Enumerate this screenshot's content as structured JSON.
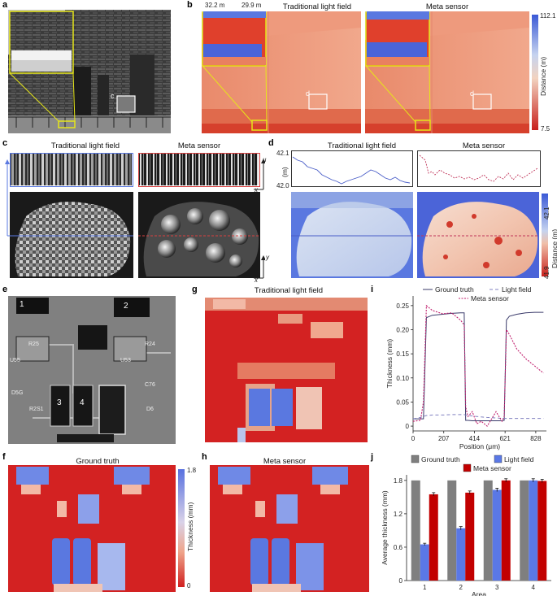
{
  "panels": {
    "a": "a",
    "b": "b",
    "c": "c",
    "d": "d",
    "e": "e",
    "f": "f",
    "g": "g",
    "h": "h",
    "i": "i",
    "j": "j"
  },
  "panel_a": {
    "roi_label": "c"
  },
  "panel_b": {
    "title_left": "Traditional light field",
    "title_right": "Meta sensor",
    "inset_max": "32.2 m",
    "inset_min": "29.9 m",
    "roi_label_left": "d",
    "roi_label_right": "d",
    "colorbar_max": "112.1",
    "colorbar_min": "7.5",
    "colorbar_label": "Distance (m)"
  },
  "panel_c": {
    "title_left": "Traditional light field",
    "title_right": "Meta sensor",
    "axis_u": "u",
    "axis_x_top": "x",
    "axis_y": "y",
    "axis_x_bottom": "x"
  },
  "panel_d": {
    "title_left": "Traditional light field",
    "title_right": "Meta sensor",
    "y_unit": "(m)",
    "y_max": "42.1",
    "y_min": "42.0",
    "colorbar_max": "42.1",
    "colorbar_min": "41.9",
    "colorbar_label": "Distance (m)"
  },
  "panel_e": {
    "chip_labels": [
      "1",
      "2",
      "3",
      "4"
    ],
    "board_texts": [
      "R25",
      "U55",
      "R24",
      "U53",
      "D5G",
      "C76",
      "R2S1",
      "D6"
    ]
  },
  "panel_g": {
    "title": "Traditional light field"
  },
  "panel_f": {
    "title": "Ground truth",
    "colorbar_max": "1.8",
    "colorbar_min": "0",
    "colorbar_label": "Thickness (mm)"
  },
  "panel_h": {
    "title": "Meta sensor"
  },
  "colors": {
    "red": "#d32222",
    "blue": "#4b64d8",
    "gray": "#7f7f7f",
    "dark_red": "#c20000",
    "light_blue": "#5a78e6",
    "purple": "#b0208a"
  },
  "chart_data": [
    {
      "type": "line",
      "panel": "i",
      "xlabel": "Position (μm)",
      "ylabel": "Thickness (mm)",
      "xlim": [
        0,
        900
      ],
      "ylim": [
        -0.01,
        0.27
      ],
      "xticks": [
        "0",
        "207",
        "414",
        "621",
        "828"
      ],
      "yticks": [
        "0",
        "0.05",
        "0.10",
        "0.15",
        "0.20",
        "0.25"
      ],
      "legend": [
        "Ground truth",
        "Light field",
        "Meta sensor"
      ],
      "legend_placement": "top-right",
      "x": [
        0,
        50,
        70,
        90,
        130,
        200,
        260,
        320,
        345,
        355,
        370,
        400,
        430,
        460,
        500,
        560,
        600,
        615,
        630,
        650,
        700,
        760,
        820,
        880
      ],
      "series": [
        {
          "name": "Ground truth",
          "values": [
            0.015,
            0.015,
            0.015,
            0.225,
            0.23,
            0.232,
            0.234,
            0.235,
            0.235,
            0.012,
            0.012,
            0.011,
            0.011,
            0.011,
            0.011,
            0.011,
            0.011,
            0.012,
            0.22,
            0.228,
            0.232,
            0.235,
            0.236,
            0.236
          ]
        },
        {
          "name": "Light field",
          "values": [
            0.015,
            0.018,
            0.02,
            0.022,
            0.023,
            0.023,
            0.024,
            0.024,
            0.024,
            0.023,
            0.022,
            0.021,
            0.02,
            0.019,
            0.018,
            0.017,
            0.016,
            0.016,
            0.016,
            0.016,
            0.016,
            0.016,
            0.016,
            0.016
          ]
        },
        {
          "name": "Meta sensor",
          "values": [
            0.01,
            0.012,
            0.05,
            0.25,
            0.24,
            0.233,
            0.235,
            0.22,
            0.21,
            0.04,
            0.02,
            0.03,
            0.005,
            0.01,
            0.0,
            0.03,
            0.01,
            0.02,
            0.2,
            0.19,
            0.16,
            0.14,
            0.125,
            0.11
          ]
        }
      ]
    },
    {
      "type": "bar",
      "panel": "j",
      "xlabel": "Area",
      "ylabel": "Average thickness (mm)",
      "categories": [
        "1",
        "2",
        "3",
        "4"
      ],
      "ylim": [
        0,
        1.9
      ],
      "yticks": [
        "0",
        "0.6",
        "1.2",
        "1.8"
      ],
      "legend": [
        "Ground truth",
        "Light field",
        "Meta sensor"
      ],
      "legend_placement": "top",
      "series": [
        {
          "name": "Ground truth",
          "values": [
            1.8,
            1.8,
            1.8,
            1.8
          ],
          "errors": [
            0,
            0,
            0,
            0
          ]
        },
        {
          "name": "Light field",
          "values": [
            0.65,
            0.94,
            1.63,
            1.8
          ],
          "errors": [
            0.02,
            0.03,
            0.03,
            0.03
          ]
        },
        {
          "name": "Meta sensor",
          "values": [
            1.55,
            1.58,
            1.8,
            1.79
          ],
          "errors": [
            0.03,
            0.03,
            0.03,
            0.03
          ]
        }
      ]
    }
  ]
}
